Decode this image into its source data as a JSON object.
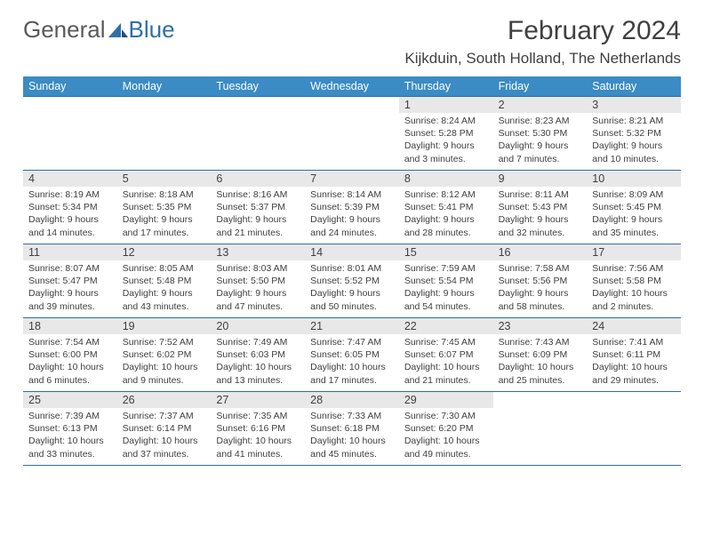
{
  "logo": {
    "word1": "General",
    "word2": "Blue"
  },
  "title": "February 2024",
  "location": "Kijkduin, South Holland, The Netherlands",
  "colors": {
    "header_bg": "#3b8bc4",
    "header_text": "#ffffff",
    "border": "#2f6fa7",
    "daynum_bg": "#e8e8e8",
    "body_text": "#404040",
    "logo_gray": "#5a5a5a",
    "logo_blue": "#2f6fa7"
  },
  "weekdays": [
    "Sunday",
    "Monday",
    "Tuesday",
    "Wednesday",
    "Thursday",
    "Friday",
    "Saturday"
  ],
  "weeks": [
    [
      {
        "empty": true
      },
      {
        "empty": true
      },
      {
        "empty": true
      },
      {
        "empty": true
      },
      {
        "num": "1",
        "sunrise": "8:24 AM",
        "sunset": "5:28 PM",
        "daylight": "9 hours and 3 minutes."
      },
      {
        "num": "2",
        "sunrise": "8:23 AM",
        "sunset": "5:30 PM",
        "daylight": "9 hours and 7 minutes."
      },
      {
        "num": "3",
        "sunrise": "8:21 AM",
        "sunset": "5:32 PM",
        "daylight": "9 hours and 10 minutes."
      }
    ],
    [
      {
        "num": "4",
        "sunrise": "8:19 AM",
        "sunset": "5:34 PM",
        "daylight": "9 hours and 14 minutes."
      },
      {
        "num": "5",
        "sunrise": "8:18 AM",
        "sunset": "5:35 PM",
        "daylight": "9 hours and 17 minutes."
      },
      {
        "num": "6",
        "sunrise": "8:16 AM",
        "sunset": "5:37 PM",
        "daylight": "9 hours and 21 minutes."
      },
      {
        "num": "7",
        "sunrise": "8:14 AM",
        "sunset": "5:39 PM",
        "daylight": "9 hours and 24 minutes."
      },
      {
        "num": "8",
        "sunrise": "8:12 AM",
        "sunset": "5:41 PM",
        "daylight": "9 hours and 28 minutes."
      },
      {
        "num": "9",
        "sunrise": "8:11 AM",
        "sunset": "5:43 PM",
        "daylight": "9 hours and 32 minutes."
      },
      {
        "num": "10",
        "sunrise": "8:09 AM",
        "sunset": "5:45 PM",
        "daylight": "9 hours and 35 minutes."
      }
    ],
    [
      {
        "num": "11",
        "sunrise": "8:07 AM",
        "sunset": "5:47 PM",
        "daylight": "9 hours and 39 minutes."
      },
      {
        "num": "12",
        "sunrise": "8:05 AM",
        "sunset": "5:48 PM",
        "daylight": "9 hours and 43 minutes."
      },
      {
        "num": "13",
        "sunrise": "8:03 AM",
        "sunset": "5:50 PM",
        "daylight": "9 hours and 47 minutes."
      },
      {
        "num": "14",
        "sunrise": "8:01 AM",
        "sunset": "5:52 PM",
        "daylight": "9 hours and 50 minutes."
      },
      {
        "num": "15",
        "sunrise": "7:59 AM",
        "sunset": "5:54 PM",
        "daylight": "9 hours and 54 minutes."
      },
      {
        "num": "16",
        "sunrise": "7:58 AM",
        "sunset": "5:56 PM",
        "daylight": "9 hours and 58 minutes."
      },
      {
        "num": "17",
        "sunrise": "7:56 AM",
        "sunset": "5:58 PM",
        "daylight": "10 hours and 2 minutes."
      }
    ],
    [
      {
        "num": "18",
        "sunrise": "7:54 AM",
        "sunset": "6:00 PM",
        "daylight": "10 hours and 6 minutes."
      },
      {
        "num": "19",
        "sunrise": "7:52 AM",
        "sunset": "6:02 PM",
        "daylight": "10 hours and 9 minutes."
      },
      {
        "num": "20",
        "sunrise": "7:49 AM",
        "sunset": "6:03 PM",
        "daylight": "10 hours and 13 minutes."
      },
      {
        "num": "21",
        "sunrise": "7:47 AM",
        "sunset": "6:05 PM",
        "daylight": "10 hours and 17 minutes."
      },
      {
        "num": "22",
        "sunrise": "7:45 AM",
        "sunset": "6:07 PM",
        "daylight": "10 hours and 21 minutes."
      },
      {
        "num": "23",
        "sunrise": "7:43 AM",
        "sunset": "6:09 PM",
        "daylight": "10 hours and 25 minutes."
      },
      {
        "num": "24",
        "sunrise": "7:41 AM",
        "sunset": "6:11 PM",
        "daylight": "10 hours and 29 minutes."
      }
    ],
    [
      {
        "num": "25",
        "sunrise": "7:39 AM",
        "sunset": "6:13 PM",
        "daylight": "10 hours and 33 minutes."
      },
      {
        "num": "26",
        "sunrise": "7:37 AM",
        "sunset": "6:14 PM",
        "daylight": "10 hours and 37 minutes."
      },
      {
        "num": "27",
        "sunrise": "7:35 AM",
        "sunset": "6:16 PM",
        "daylight": "10 hours and 41 minutes."
      },
      {
        "num": "28",
        "sunrise": "7:33 AM",
        "sunset": "6:18 PM",
        "daylight": "10 hours and 45 minutes."
      },
      {
        "num": "29",
        "sunrise": "7:30 AM",
        "sunset": "6:20 PM",
        "daylight": "10 hours and 49 minutes."
      },
      {
        "empty": true
      },
      {
        "empty": true
      }
    ]
  ]
}
